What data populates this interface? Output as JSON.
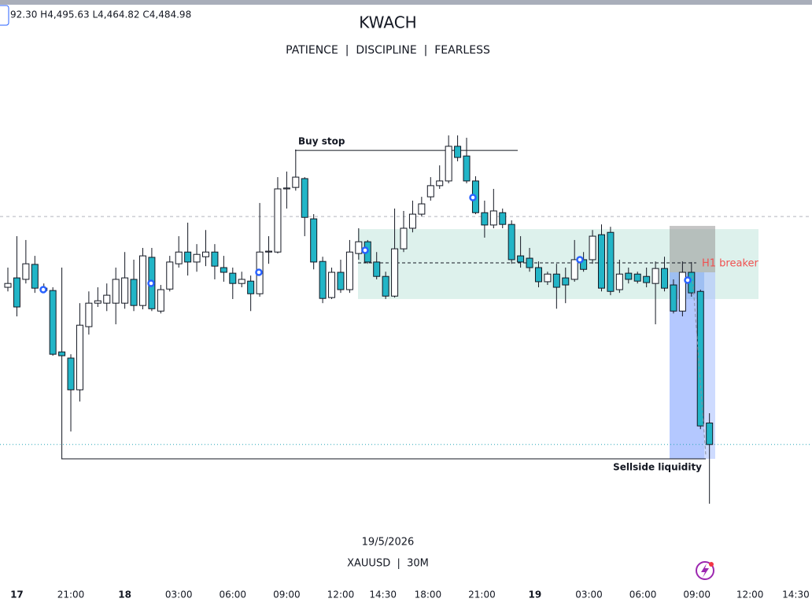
{
  "chart_data": {
    "type": "candlestick",
    "ohlc_header": "92.30 H4,495.63 L4,464.82 C4,484.98",
    "title": "KWACH",
    "subtitle": "PATIENCE  |  DISCIPLINE  |  FEARLESS",
    "date_label": "19/5/2026",
    "symbol_label": "XAUUSD  |  30M",
    "up_color": "#ffffff",
    "down_color": "#22b5c7",
    "xlim": [
      -0.875,
      89.4
    ],
    "ylim": [
      4430,
      4636.3
    ],
    "xticks": [
      {
        "value": 1,
        "label": "17"
      },
      {
        "value": 7,
        "label": "21:00"
      },
      {
        "value": 13,
        "label": "18"
      },
      {
        "value": 19,
        "label": "03:00"
      },
      {
        "value": 25,
        "label": "06:00"
      },
      {
        "value": 31,
        "label": "09:00"
      },
      {
        "value": 37,
        "label": "12:00"
      },
      {
        "value": 41.7,
        "label": "14:30"
      },
      {
        "value": 46.7,
        "label": "18:00"
      },
      {
        "value": 52.7,
        "label": "21:00"
      },
      {
        "value": 58.6,
        "label": "19"
      },
      {
        "value": 64.6,
        "label": "03:00"
      },
      {
        "value": 70.6,
        "label": "06:00"
      },
      {
        "value": 76.6,
        "label": "09:00"
      },
      {
        "value": 82.5,
        "label": "12:00"
      },
      {
        "value": 87.6,
        "label": "14:30"
      }
    ],
    "x": [
      0,
      1,
      2,
      3,
      4,
      5,
      6,
      7,
      8,
      9,
      10,
      11,
      12,
      13,
      14,
      15,
      16,
      17,
      18,
      19,
      20,
      21,
      22,
      23,
      24,
      25,
      26,
      27,
      28,
      29,
      30,
      31,
      32,
      33,
      34,
      35,
      36,
      37,
      38,
      39,
      40,
      41,
      42,
      43,
      44,
      45,
      46,
      47,
      48,
      49,
      50,
      51,
      52,
      53,
      54,
      55,
      56,
      57,
      58,
      59,
      60,
      61,
      62,
      63,
      64,
      65,
      66,
      67,
      68,
      69,
      70,
      71,
      72,
      73,
      74,
      75,
      76,
      77,
      78
    ],
    "open": [
      4538.5,
      4541.7,
      4541.2,
      4546.3,
      4538.2,
      4537.4,
      4516.5,
      4514.4,
      4503.6,
      4525.1,
      4533.1,
      4533.1,
      4533.1,
      4533.1,
      4541.2,
      4532.3,
      4548.7,
      4530.4,
      4537.9,
      4546.5,
      4550.5,
      4547.1,
      4548.9,
      4550.5,
      4545.2,
      4543.3,
      4539.8,
      4540.6,
      4536.3,
      4550.5,
      4550.5,
      4572.0,
      4572.5,
      4575.5,
      4561.8,
      4547.3,
      4535.0,
      4543.6,
      4537.7,
      4550.0,
      4554.0,
      4547.1,
      4542.2,
      4535.5,
      4551.6,
      4558.6,
      4563.4,
      4569.3,
      4573.1,
      4574.7,
      4586.5,
      4583.2,
      4574.7,
      4563.9,
      4559.7,
      4563.9,
      4559.9,
      4549.2,
      4548.4,
      4545.2,
      4540.4,
      4543.0,
      4541.7,
      4541.2,
      4547.9,
      4547.9,
      4556.4,
      4557.2,
      4537.7,
      4543.3,
      4543.0,
      4542.2,
      4539.8,
      4544.9,
      4539.3,
      4530.4,
      4543.6,
      4537.1,
      4492.3
    ],
    "high": [
      4545.2,
      4555.9,
      4554.6,
      4549.2,
      4539.8,
      4538.5,
      4545.2,
      4515.7,
      4533.1,
      4537.1,
      4538.5,
      4539.8,
      4545.2,
      4550.5,
      4547.9,
      4551.9,
      4551.9,
      4539.3,
      4549.2,
      4555.9,
      4560.5,
      4553.2,
      4558.0,
      4553.2,
      4549.2,
      4545.2,
      4543.8,
      4542.5,
      4567.2,
      4555.9,
      4576.0,
      4577.9,
      4585.4,
      4576.0,
      4563.4,
      4548.9,
      4545.2,
      4547.9,
      4554.6,
      4558.6,
      4554.6,
      4550.5,
      4543.8,
      4565.3,
      4564.5,
      4568.0,
      4569.3,
      4576.0,
      4580.0,
      4590.2,
      4590.2,
      4589.4,
      4576.3,
      4568.0,
      4572.0,
      4565.3,
      4561.3,
      4555.9,
      4551.9,
      4547.3,
      4543.8,
      4546.5,
      4545.2,
      4554.6,
      4550.5,
      4558.0,
      4559.9,
      4559.1,
      4547.9,
      4545.2,
      4543.8,
      4545.2,
      4547.3,
      4548.9,
      4541.2,
      4547.3,
      4547.1,
      4537.7,
      4495.63
    ],
    "low": [
      4537.1,
      4528.6,
      4539.8,
      4536.6,
      4536.6,
      4515.2,
      4480.1,
      4489.4,
      4499.6,
      4522.4,
      4531.8,
      4530.4,
      4525.9,
      4531.2,
      4530.4,
      4531.0,
      4530.4,
      4529.6,
      4537.1,
      4545.2,
      4542.5,
      4543.8,
      4545.7,
      4541.2,
      4540.4,
      4534.5,
      4538.5,
      4530.4,
      4535.3,
      4546.5,
      4550.0,
      4565.3,
      4571.4,
      4555.9,
      4544.6,
      4533.1,
      4534.5,
      4536.6,
      4536.6,
      4547.9,
      4546.5,
      4541.2,
      4534.5,
      4535.0,
      4550.5,
      4557.2,
      4562.6,
      4568.0,
      4572.0,
      4573.9,
      4581.4,
      4573.9,
      4563.4,
      4555.4,
      4558.6,
      4558.6,
      4546.5,
      4545.2,
      4543.8,
      4538.5,
      4539.3,
      4531.2,
      4533.1,
      4540.4,
      4543.8,
      4546.5,
      4537.1,
      4535.8,
      4536.6,
      4539.8,
      4539.8,
      4538.5,
      4525.9,
      4537.1,
      4529.6,
      4528.6,
      4535.3,
      4490.2,
      4464.82
    ],
    "close": [
      4539.8,
      4531.8,
      4546.5,
      4538.2,
      4537.4,
      4515.7,
      4515.2,
      4503.6,
      4525.6,
      4533.1,
      4533.9,
      4535.8,
      4541.2,
      4541.7,
      4532.3,
      4549.2,
      4531.2,
      4537.7,
      4547.1,
      4550.5,
      4547.1,
      4549.7,
      4550.5,
      4545.7,
      4543.6,
      4539.8,
      4541.2,
      4536.3,
      4550.5,
      4550.8,
      4572.0,
      4572.3,
      4576.0,
      4562.3,
      4547.1,
      4534.7,
      4543.6,
      4537.7,
      4550.5,
      4554.0,
      4547.1,
      4542.2,
      4535.5,
      4551.6,
      4558.6,
      4563.4,
      4566.9,
      4573.1,
      4574.7,
      4586.5,
      4582.7,
      4574.7,
      4563.9,
      4559.7,
      4564.5,
      4559.9,
      4547.9,
      4547.1,
      4545.2,
      4540.4,
      4543.0,
      4538.5,
      4539.3,
      4547.9,
      4544.6,
      4555.9,
      4538.2,
      4537.1,
      4543.0,
      4541.2,
      4540.6,
      4540.1,
      4544.9,
      4538.2,
      4530.4,
      4543.6,
      4536.6,
      4491.3,
      4484.98
    ],
    "buy_stop": {
      "label": "Buy stop",
      "value": 4585.1
    },
    "sellside_liquidity": {
      "label": "Sellside liquidity",
      "value": 4480.1
    },
    "h1_breaker": {
      "label": "H1 breaker",
      "value": 4546.8
    },
    "zone": [
      4534.5,
      4558.3
    ],
    "breaker_box": [
      4543.6,
      4559.4
    ],
    "reference_line": 4562.6
  }
}
